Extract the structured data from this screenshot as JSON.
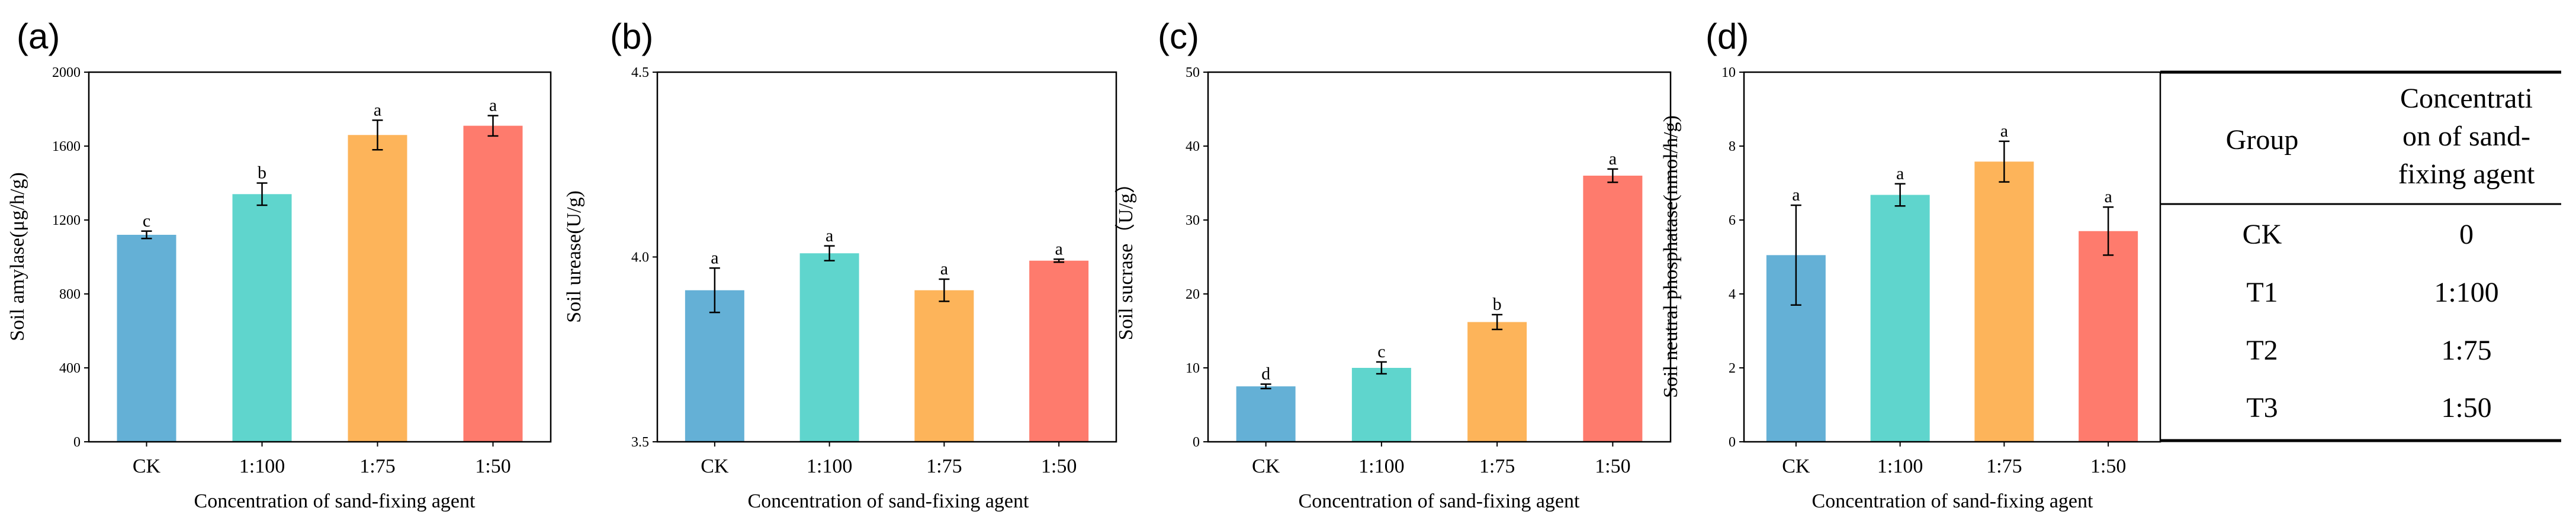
{
  "chart_data": [
    {
      "type": "bar",
      "panel_label": "(a)",
      "categories": [
        "CK",
        "1:100",
        "1:75",
        "1:50"
      ],
      "values": [
        1120,
        1340,
        1660,
        1710
      ],
      "errors": [
        20,
        60,
        80,
        55
      ],
      "significance": [
        "c",
        "b",
        "a",
        "a"
      ],
      "ylabel": "Soil amylase(μg/h/g)",
      "xlabel": "Concentration of sand-fixing agent",
      "ylim": [
        0,
        2000
      ],
      "yticks": [
        0,
        400,
        800,
        1200,
        1600,
        2000
      ],
      "ytick_labels": [
        "0",
        "400",
        "800",
        "1200",
        "1600",
        "2000"
      ]
    },
    {
      "type": "bar",
      "panel_label": "(b)",
      "categories": [
        "CK",
        "1:100",
        "1:75",
        "1:50"
      ],
      "values": [
        3.91,
        4.01,
        3.91,
        3.99
      ],
      "errors": [
        0.06,
        0.02,
        0.03,
        0.004
      ],
      "significance": [
        "a",
        "a",
        "a",
        "a"
      ],
      "ylabel": "Soil urease(U/g)",
      "xlabel": "Concentration of sand-fixing agent",
      "ylim": [
        3.5,
        4.5
      ],
      "yticks": [
        3.5,
        4.0,
        4.5
      ],
      "ytick_labels": [
        "3.5",
        "4.0",
        "4.5"
      ]
    },
    {
      "type": "bar",
      "panel_label": "(c)",
      "categories": [
        "CK",
        "1:100",
        "1:75",
        "1:50"
      ],
      "values": [
        7.5,
        10,
        16.2,
        36
      ],
      "errors": [
        0.3,
        0.8,
        1.0,
        0.9
      ],
      "significance": [
        "d",
        "c",
        "b",
        "a"
      ],
      "ylabel": "Soil sucrase（U/g）",
      "xlabel": "Concentration of sand-fixing agent",
      "ylim": [
        0,
        50
      ],
      "yticks": [
        0,
        10,
        20,
        30,
        40,
        50
      ],
      "ytick_labels": [
        "0",
        "10",
        "20",
        "30",
        "40",
        "50"
      ]
    },
    {
      "type": "bar",
      "panel_label": "(d)",
      "categories": [
        "CK",
        "1:100",
        "1:75",
        "1:50"
      ],
      "values": [
        5.05,
        6.68,
        7.58,
        5.7
      ],
      "errors": [
        1.35,
        0.3,
        0.55,
        0.65
      ],
      "significance": [
        "a",
        "a",
        "a",
        "a"
      ],
      "ylabel": "Soil neutral phosphatase(nmol/h/g)",
      "xlabel": "Concentration of sand-fixing agent",
      "ylim": [
        0,
        10
      ],
      "yticks": [
        0,
        2,
        4,
        6,
        8,
        10
      ],
      "ytick_labels": [
        "0",
        "2",
        "4",
        "6",
        "8",
        "10"
      ]
    }
  ],
  "bar_colors": [
    "#64b0d6",
    "#5fd5cd",
    "#fdb45a",
    "#fe7b6d"
  ],
  "legend_table": {
    "header_group": "Group",
    "header_conc_lines": [
      "Concentrati",
      "on of sand-",
      "fixing agent"
    ],
    "rows": [
      {
        "group": "CK",
        "conc": "0"
      },
      {
        "group": "T1",
        "conc": "1:100"
      },
      {
        "group": "T2",
        "conc": "1:75"
      },
      {
        "group": "T3",
        "conc": "1:50"
      }
    ]
  }
}
